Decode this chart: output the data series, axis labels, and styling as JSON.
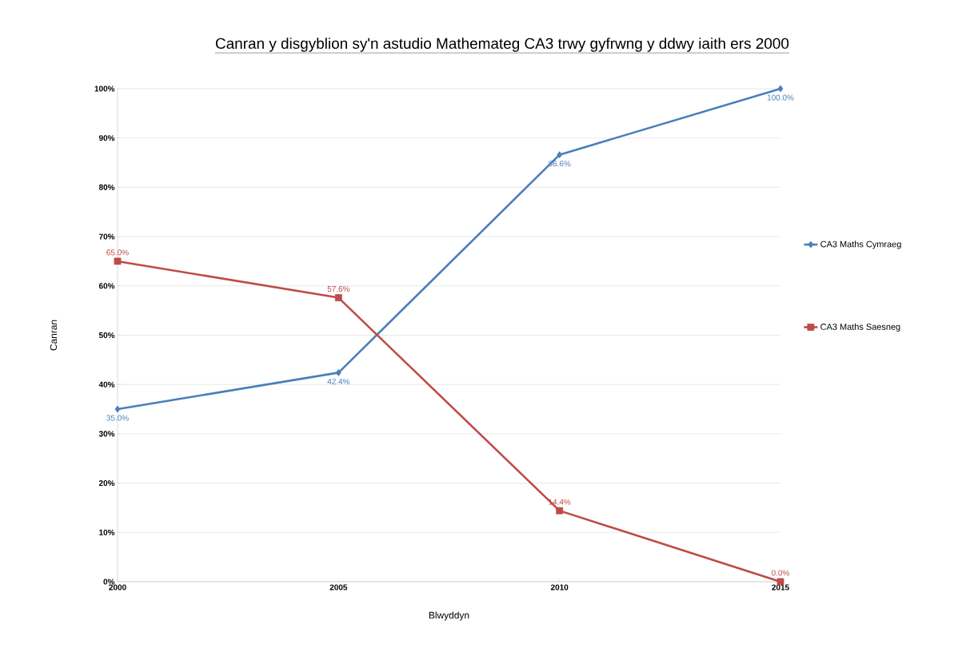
{
  "chart_data": {
    "type": "line",
    "title": "Canran y disgyblion sy'n astudio Mathemateg CA3 trwy gyfrwng y ddwy iaith ers 2000",
    "xlabel": "Blwyddyn",
    "ylabel": "Canran",
    "categories": [
      "2000",
      "2005",
      "2010",
      "2015"
    ],
    "series": [
      {
        "name": "CA3 Maths Cymraeg",
        "color": "#4a7ebb",
        "marker": "diamond",
        "values": [
          35.0,
          42.4,
          86.6,
          100.0
        ],
        "value_labels": [
          "35.0%",
          "42.4%",
          "86.6%",
          "100.0%"
        ]
      },
      {
        "name": "CA3 Maths Saesneg",
        "color": "#be4b48",
        "marker": "square",
        "values": [
          65.0,
          57.6,
          14.4,
          0.0
        ],
        "value_labels": [
          "65.0%",
          "57.6%",
          "14.4%",
          "0.0%"
        ]
      }
    ],
    "ylim": [
      0,
      100
    ],
    "yticks": [
      {
        "value": 0,
        "label": "0%"
      },
      {
        "value": 10,
        "label": "10%"
      },
      {
        "value": 20,
        "label": "20%"
      },
      {
        "value": 30,
        "label": "30%"
      },
      {
        "value": 40,
        "label": "40%"
      },
      {
        "value": 50,
        "label": "50%"
      },
      {
        "value": 60,
        "label": "60%"
      },
      {
        "value": 70,
        "label": "70%"
      },
      {
        "value": 80,
        "label": "80%"
      },
      {
        "value": 90,
        "label": "90%"
      },
      {
        "value": 100,
        "label": "100%"
      }
    ],
    "grid": "y",
    "legend": "right",
    "line_style": "solid"
  }
}
